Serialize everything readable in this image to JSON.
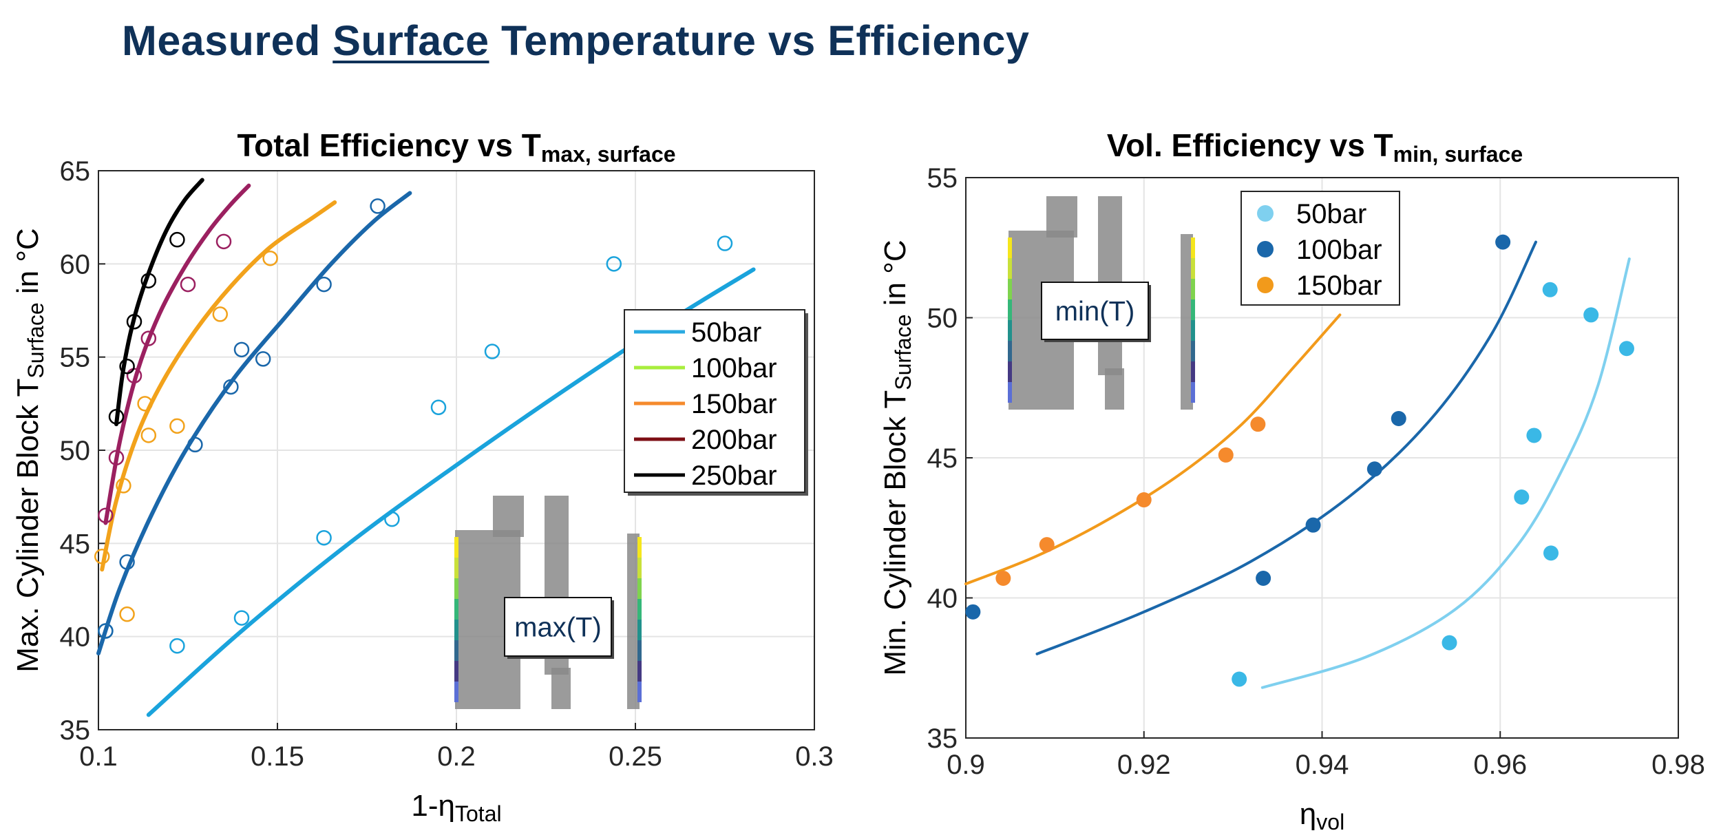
{
  "slide": {
    "title_before": "Measured ",
    "title_underlined": "Surface",
    "title_after": " Temperature vs Efficiency"
  },
  "chart_data": [
    {
      "type": "scatter",
      "title_main": "Total Efficiency vs T",
      "title_sub": "max, surface",
      "xlabel_main": "1-η",
      "xlabel_sub": "Total",
      "ylabel_pre": "Max. Cylinder Block T",
      "ylabel_sub": "Surface",
      "ylabel_post": " in °C",
      "xlim": [
        0.1,
        0.3
      ],
      "ylim": [
        35,
        65
      ],
      "xticks": [
        0.1,
        0.15,
        0.2,
        0.25,
        0.3
      ],
      "xtick_labels": [
        "0.1",
        "0.15",
        "0.2",
        "0.25",
        "0.3"
      ],
      "yticks": [
        35,
        40,
        45,
        50,
        55,
        60,
        65
      ],
      "ytick_labels": [
        "35",
        "40",
        "45",
        "50",
        "55",
        "60",
        "65"
      ],
      "grid": true,
      "legend_position": "right-middle",
      "inset_label": "max(T)",
      "marker": "open-circle",
      "legend": [
        {
          "name": "50bar",
          "color": "#29aae1"
        },
        {
          "name": "100bar",
          "color": "#a8ee3d"
        },
        {
          "name": "150bar",
          "color": "#f58a2c"
        },
        {
          "name": "200bar",
          "color": "#7d0f14"
        },
        {
          "name": "250bar",
          "color": "#000000"
        }
      ],
      "series": [
        {
          "name": "50bar",
          "color": "#1aa3dc",
          "points": [
            [
              0.102,
              40.3
            ],
            [
              0.122,
              39.5
            ],
            [
              0.14,
              41.0
            ],
            [
              0.163,
              45.3
            ],
            [
              0.182,
              46.3
            ],
            [
              0.195,
              52.3
            ],
            [
              0.21,
              55.3
            ],
            [
              0.244,
              60.0
            ],
            [
              0.275,
              61.1
            ]
          ],
          "fit": [
            [
              0.114,
              35.8
            ],
            [
              0.14,
              40.3
            ],
            [
              0.17,
              45.0
            ],
            [
              0.2,
              49.2
            ],
            [
              0.23,
              53.2
            ],
            [
              0.26,
              57.0
            ],
            [
              0.283,
              59.7
            ]
          ]
        },
        {
          "name": "100bar",
          "color": "#1a67aa",
          "points": [
            [
              0.102,
              40.3
            ],
            [
              0.108,
              44.0
            ],
            [
              0.127,
              50.3
            ],
            [
              0.137,
              53.4
            ],
            [
              0.14,
              55.4
            ],
            [
              0.146,
              54.9
            ],
            [
              0.163,
              58.9
            ],
            [
              0.178,
              63.1
            ]
          ],
          "fit": [
            [
              0.1,
              39.1
            ],
            [
              0.106,
              42.6
            ],
            [
              0.115,
              46.6
            ],
            [
              0.125,
              50.2
            ],
            [
              0.138,
              53.9
            ],
            [
              0.152,
              57.1
            ],
            [
              0.165,
              60.0
            ],
            [
              0.177,
              62.3
            ],
            [
              0.187,
              63.8
            ]
          ]
        },
        {
          "name": "150bar",
          "color": "#f2a21b",
          "points": [
            [
              0.101,
              44.3
            ],
            [
              0.107,
              48.1
            ],
            [
              0.108,
              41.2
            ],
            [
              0.113,
              52.5
            ],
            [
              0.114,
              50.8
            ],
            [
              0.122,
              51.3
            ],
            [
              0.134,
              57.3
            ],
            [
              0.148,
              60.3
            ]
          ],
          "fit": [
            [
              0.101,
              43.6
            ],
            [
              0.105,
              47.3
            ],
            [
              0.111,
              50.9
            ],
            [
              0.118,
              53.7
            ],
            [
              0.127,
              56.4
            ],
            [
              0.137,
              58.8
            ],
            [
              0.148,
              60.9
            ],
            [
              0.16,
              62.5
            ],
            [
              0.166,
              63.3
            ]
          ]
        },
        {
          "name": "200bar",
          "color": "#9b2060",
          "points": [
            [
              0.102,
              46.5
            ],
            [
              0.105,
              49.6
            ],
            [
              0.11,
              54.0
            ],
            [
              0.114,
              56.0
            ],
            [
              0.125,
              58.9
            ],
            [
              0.135,
              61.2
            ]
          ],
          "fit": [
            [
              0.102,
              46.1
            ],
            [
              0.106,
              50.5
            ],
            [
              0.111,
              54.3
            ],
            [
              0.117,
              57.3
            ],
            [
              0.124,
              59.8
            ],
            [
              0.131,
              61.8
            ],
            [
              0.137,
              63.2
            ],
            [
              0.142,
              64.2
            ]
          ]
        },
        {
          "name": "250bar",
          "color": "#000000",
          "points": [
            [
              0.105,
              51.8
            ],
            [
              0.108,
              54.5
            ],
            [
              0.11,
              56.9
            ],
            [
              0.114,
              59.1
            ],
            [
              0.122,
              61.3
            ]
          ],
          "fit": [
            [
              0.105,
              51.4
            ],
            [
              0.107,
              54.4
            ],
            [
              0.11,
              57.1
            ],
            [
              0.114,
              59.5
            ],
            [
              0.119,
              61.8
            ],
            [
              0.124,
              63.4
            ],
            [
              0.129,
              64.5
            ]
          ]
        }
      ]
    },
    {
      "type": "scatter",
      "title_main": "Vol. Efficiency vs T",
      "title_sub": "min, surface",
      "xlabel_main": "η",
      "xlabel_sub": "vol",
      "ylabel_pre": "Min. Cylinder Block T",
      "ylabel_sub": "Surface",
      "ylabel_post": " in °C",
      "xlim": [
        0.9,
        0.98
      ],
      "ylim": [
        35,
        55
      ],
      "xticks": [
        0.9,
        0.92,
        0.94,
        0.96,
        0.98
      ],
      "xtick_labels": [
        "0.9",
        "0.92",
        "0.94",
        "0.96",
        "0.98"
      ],
      "yticks": [
        35,
        40,
        45,
        50,
        55
      ],
      "ytick_labels": [
        "35",
        "40",
        "45",
        "50",
        "55"
      ],
      "grid": true,
      "legend_position": "top-middle",
      "inset_label": "min(T)",
      "marker": "filled-circle",
      "legend": [
        {
          "name": "50bar",
          "color": "#7fd0ef"
        },
        {
          "name": "100bar",
          "color": "#1a67aa"
        },
        {
          "name": "150bar",
          "color": "#f29a1b"
        }
      ],
      "series": [
        {
          "name": "50bar",
          "color": "#3ab8e6",
          "fit_color": "#7fd0ef",
          "points": [
            [
              0.9307,
              37.1
            ],
            [
              0.9543,
              38.4
            ],
            [
              0.9624,
              43.6
            ],
            [
              0.9638,
              45.8
            ],
            [
              0.9657,
              41.6
            ],
            [
              0.9656,
              51.0
            ],
            [
              0.9702,
              50.1
            ],
            [
              0.9742,
              48.9
            ]
          ],
          "fit": [
            [
              0.9333,
              36.8
            ],
            [
              0.945,
              37.9
            ],
            [
              0.955,
              39.6
            ],
            [
              0.962,
              41.9
            ],
            [
              0.967,
              44.6
            ],
            [
              0.971,
              47.6
            ],
            [
              0.9745,
              52.1
            ]
          ]
        },
        {
          "name": "100bar",
          "color": "#1a67aa",
          "fit_color": "#1a67aa",
          "points": [
            [
              0.9008,
              39.5
            ],
            [
              0.9334,
              40.7
            ],
            [
              0.939,
              42.6
            ],
            [
              0.9459,
              44.6
            ],
            [
              0.9486,
              46.4
            ],
            [
              0.9603,
              52.7
            ]
          ],
          "fit": [
            [
              0.908,
              38.0
            ],
            [
              0.92,
              39.5
            ],
            [
              0.932,
              41.3
            ],
            [
              0.943,
              43.6
            ],
            [
              0.952,
              46.3
            ],
            [
              0.959,
              49.4
            ],
            [
              0.964,
              52.7
            ]
          ]
        },
        {
          "name": "150bar",
          "color": "#f58a2c",
          "fit_color": "#f29a1b",
          "points": [
            [
              0.9042,
              40.7
            ],
            [
              0.9091,
              41.9
            ],
            [
              0.92,
              43.5
            ],
            [
              0.9292,
              45.1
            ],
            [
              0.9328,
              46.2
            ]
          ],
          "fit": [
            [
              0.9,
              40.5
            ],
            [
              0.908,
              41.5
            ],
            [
              0.916,
              42.8
            ],
            [
              0.924,
              44.4
            ],
            [
              0.931,
              46.2
            ],
            [
              0.937,
              48.3
            ],
            [
              0.942,
              50.1
            ]
          ]
        }
      ]
    }
  ]
}
